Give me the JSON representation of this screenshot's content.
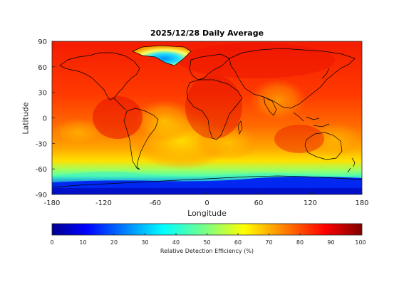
{
  "title": "2025/12/28 Daily Average",
  "xlabel": "Longitude",
  "ylabel": "Latitude",
  "x_ticks": [
    "-180",
    "-120",
    "-60",
    "0",
    "60",
    "120",
    "180"
  ],
  "y_ticks": [
    "90",
    "60",
    "30",
    "0",
    "-30",
    "-60",
    "-90"
  ],
  "colorbar": {
    "label": "Relative Detection Efficiency (%)",
    "ticks": [
      "0",
      "10",
      "20",
      "30",
      "40",
      "50",
      "60",
      "70",
      "80",
      "90",
      "100"
    ],
    "colormap": "jet",
    "range": [
      0,
      100
    ]
  },
  "map": {
    "projection": "equirectangular",
    "lon_range": [
      -180,
      180
    ],
    "lat_range": [
      -90,
      90
    ],
    "coastlines": true,
    "field": "relative detection efficiency",
    "low_regions": [
      "Greenland",
      "Antarctica"
    ]
  }
}
